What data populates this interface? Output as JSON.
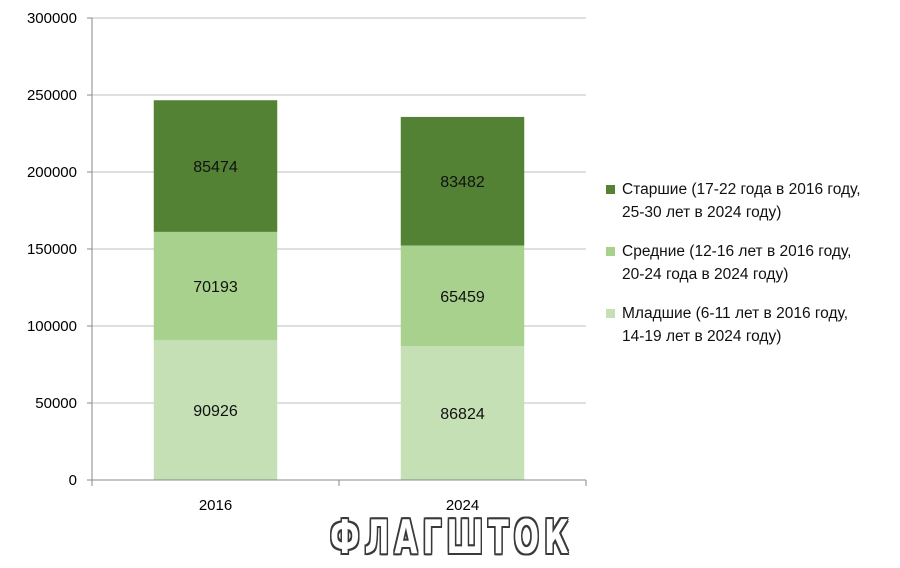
{
  "chart_data": {
    "type": "bar",
    "stacked": true,
    "categories": [
      "2016",
      "2024"
    ],
    "series": [
      {
        "name": "Младшие (6-11 лет в 2016 году, 14-19 лет в 2024 году)",
        "values": [
          90926,
          86824
        ],
        "color": "#c5e0b4"
      },
      {
        "name": "Средние (12-16 лет в 2016 году, 20-24 года в 2024 году)",
        "values": [
          70193,
          65459
        ],
        "color": "#a9d18e"
      },
      {
        "name": "Старшие (17-22 года в 2016 году, 25-30 лет в 2024 году)",
        "values": [
          85474,
          83482
        ],
        "color": "#548235"
      }
    ],
    "ylim": [
      0,
      300000
    ],
    "yticks": [
      "0",
      "50000",
      "100000",
      "150000",
      "200000",
      "250000",
      "300000"
    ],
    "grid": true,
    "legend_position": "right"
  },
  "legend": [
    {
      "line1": "Старшие (17-22 года в 2016 году,",
      "line2": "25-30 лет в 2024 году)",
      "color": "#548235"
    },
    {
      "line1": "Средние (12-16 лет в 2016 году,",
      "line2": "20-24 года в 2024 году)",
      "color": "#a9d18e"
    },
    {
      "line1": "Младшие (6-11 лет в 2016 году,",
      "line2": "14-19 лет в 2024 году)",
      "color": "#c5e0b4"
    }
  ],
  "watermark": "ФЛАГШТОК"
}
